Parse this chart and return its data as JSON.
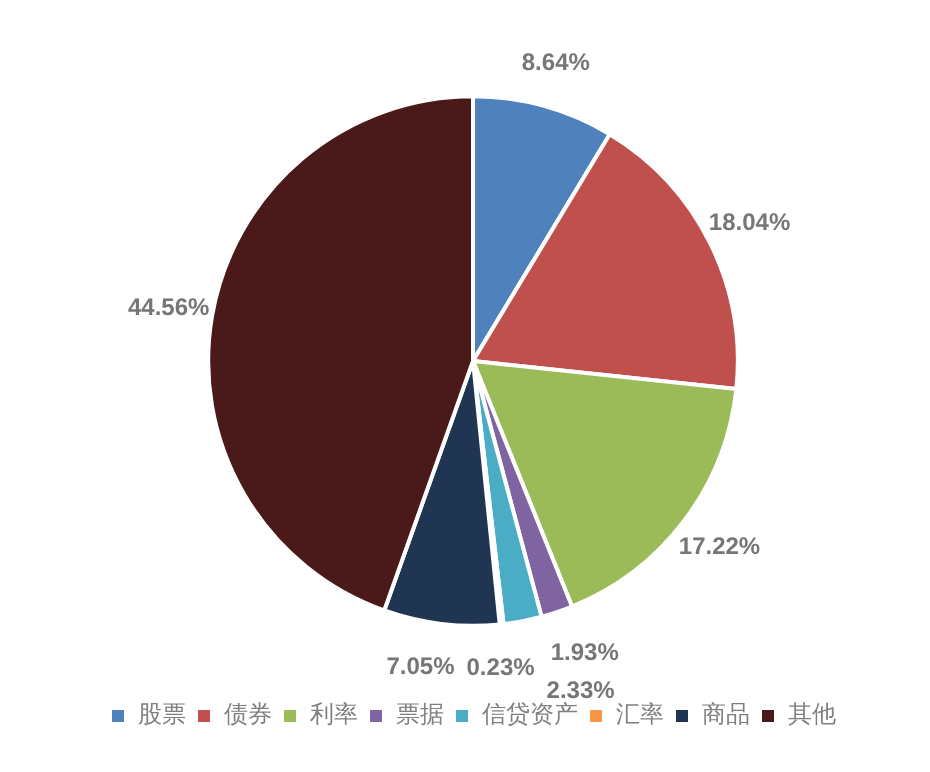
{
  "chart_data": {
    "type": "pie",
    "categories": [
      "股票",
      "债券",
      "利率",
      "票据",
      "信贷资产",
      "汇率",
      "商品",
      "其他"
    ],
    "values": [
      8.64,
      18.04,
      17.22,
      1.93,
      2.33,
      0.23,
      7.05,
      44.56
    ],
    "value_labels": [
      "8.64%",
      "18.04%",
      "17.22%",
      "1.93%",
      "2.33%",
      "0.23%",
      "7.05%",
      "44.56%"
    ],
    "colors": [
      "#4f81bd",
      "#c0504d",
      "#9bbb59",
      "#8064a2",
      "#4bacc6",
      "#f79646",
      "#1f3552",
      "#4a1a1a"
    ],
    "data_labels": true,
    "legend": "bottom"
  }
}
